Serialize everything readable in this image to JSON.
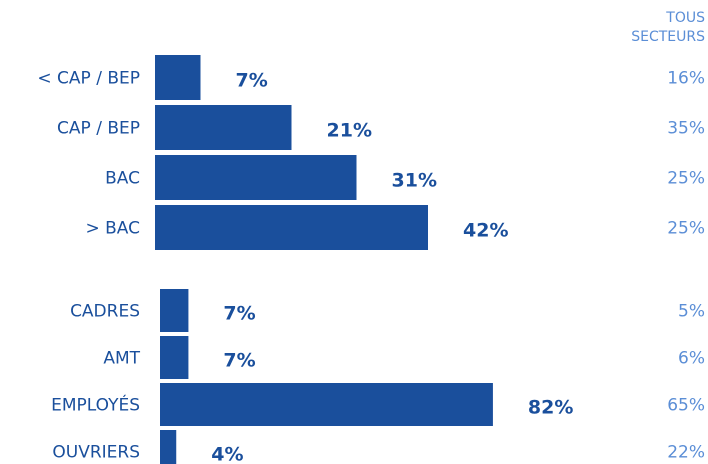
{
  "chart_data": {
    "type": "bar",
    "orientation": "horizontal",
    "reference_header": [
      "TOUS",
      "SECTEURS"
    ],
    "colors": {
      "bar": "#1a4f9c",
      "label": "#1a4f9c",
      "reference": "#5b8ed6"
    },
    "groups": [
      {
        "categories": [
          "< CAP / BEP",
          "CAP / BEP",
          "BAC",
          "> BAC"
        ],
        "values": [
          7,
          21,
          31,
          42
        ],
        "value_labels": [
          "7%",
          "21%",
          "31%",
          "42%"
        ],
        "reference_labels": [
          "16%",
          "35%",
          "25%",
          "25%"
        ]
      },
      {
        "categories": [
          "CADRES",
          "AMT",
          "EMPLOYÉS",
          "OUVRIERS"
        ],
        "values": [
          7,
          7,
          82,
          4
        ],
        "value_labels": [
          "7%",
          "7%",
          "82%",
          "4%"
        ],
        "reference_labels": [
          "5%",
          "6%",
          "65%",
          "22%"
        ]
      }
    ]
  }
}
